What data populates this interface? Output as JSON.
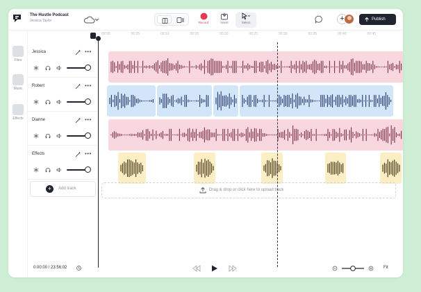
{
  "header": {
    "project_title": "The Hustle Podcast",
    "project_author": "Jessica Taylor",
    "tools": {
      "record": "Record",
      "insert": "Insert",
      "select": "Select"
    },
    "publish_label": "Publish"
  },
  "sidebar": {
    "items": [
      {
        "label": "Files",
        "icon": "files-icon"
      },
      {
        "label": "Music",
        "icon": "music-icon"
      },
      {
        "label": "Effects",
        "icon": "effects-icon"
      }
    ]
  },
  "tracks": [
    {
      "name": "Jessica",
      "color": "#f8d7de",
      "wave_color": "#7a2f45",
      "volume": 1.0
    },
    {
      "name": "Robert",
      "color": "#d3e5f9",
      "wave_color": "#23386a",
      "volume": 1.0
    },
    {
      "name": "Dianne",
      "color": "#f8d7de",
      "wave_color": "#7a2f45",
      "volume": 1.0
    },
    {
      "name": "Effects",
      "color": "#fbeec4",
      "wave_color": "#3a2f10",
      "volume": 1.0
    }
  ],
  "add_track_label": "Add track",
  "upload_label": "Drag & drop or click here to upload track",
  "ruler": {
    "ticks": [
      "00:00",
      "00:05",
      "00:10",
      "00:15",
      "00:20",
      "00:25",
      "00:30",
      "00:35",
      "00:40",
      "00:45"
    ]
  },
  "footer": {
    "time": "0:00:00 / 23:56:02",
    "fit_label": "Fit",
    "zoom": 0.5
  },
  "colors": {
    "accent": "#1f2430",
    "record": "#e23b57",
    "background": "#cdeed4"
  }
}
